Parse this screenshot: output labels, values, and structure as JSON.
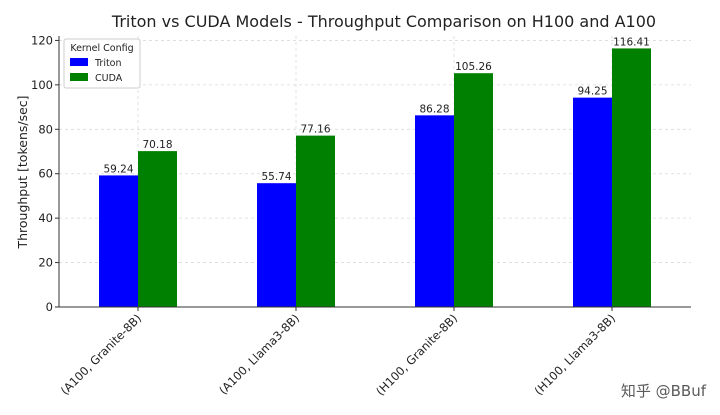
{
  "chart_data": {
    "type": "bar",
    "title": "Triton vs CUDA Models - Throughput Comparison on H100 and A100",
    "xlabel": "",
    "ylabel": "Throughput [tokens/sec]",
    "ylim": [
      0,
      122
    ],
    "yticks": [
      0,
      20,
      40,
      60,
      80,
      100,
      120
    ],
    "grid": true,
    "legend_title": "Kernel Config",
    "legend_position": "top-left",
    "categories": [
      "(A100, Granite-8B)",
      "(A100, Llama3-8B)",
      "(H100, Granite-8B)",
      "(H100, Llama3-8B)"
    ],
    "series": [
      {
        "name": "Triton",
        "values": [
          59.24,
          55.74,
          86.28,
          94.25
        ],
        "labels": [
          "59.24",
          "55.74",
          "86.28",
          "94.25"
        ],
        "color": "#0000ff"
      },
      {
        "name": "CUDA",
        "values": [
          70.18,
          77.16,
          105.26,
          116.41
        ],
        "labels": [
          "70.18",
          "77.16",
          "105.26",
          "116.41"
        ],
        "color": "#008000"
      }
    ]
  },
  "watermark": "知乎 @BBuf"
}
